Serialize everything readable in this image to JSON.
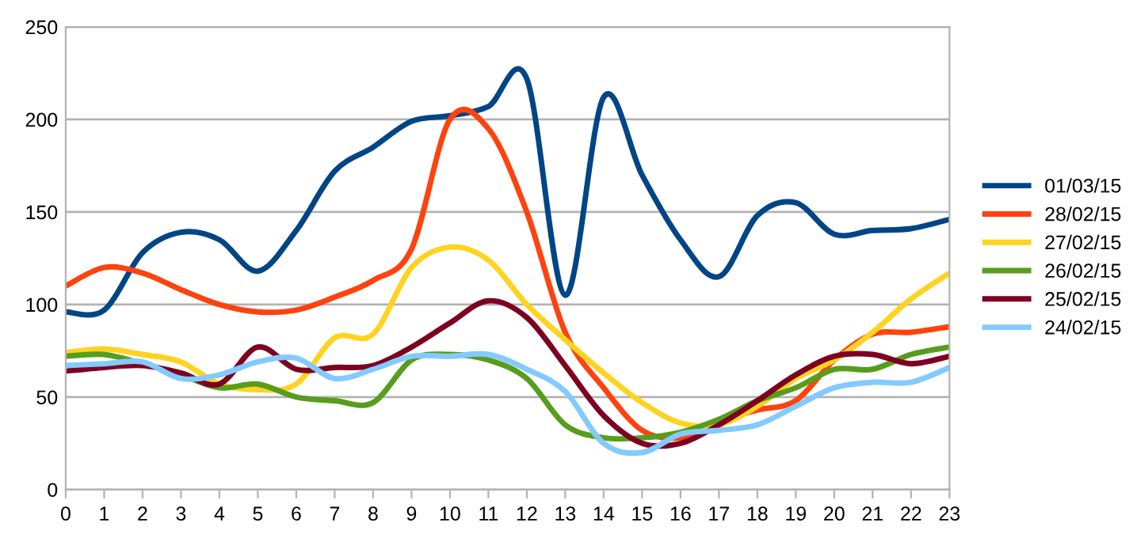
{
  "chart_data": {
    "type": "line",
    "x": [
      0,
      1,
      2,
      3,
      4,
      5,
      6,
      7,
      8,
      9,
      10,
      11,
      12,
      13,
      14,
      15,
      16,
      17,
      18,
      19,
      20,
      21,
      22,
      23
    ],
    "xlim": [
      0,
      23
    ],
    "xticks": [
      0,
      1,
      2,
      3,
      4,
      5,
      6,
      7,
      8,
      9,
      10,
      11,
      12,
      13,
      14,
      15,
      16,
      17,
      18,
      19,
      20,
      21,
      22,
      23
    ],
    "ylim": [
      0,
      250
    ],
    "yticks": [
      0,
      50,
      100,
      150,
      200,
      250
    ],
    "grid": "y",
    "legend": "right",
    "marker": "none",
    "line_style": "solid",
    "series": [
      {
        "name": "01/03/15",
        "color": "#004586",
        "values": [
          96,
          97,
          128,
          139,
          135,
          118,
          140,
          172,
          185,
          199,
          202,
          207,
          222,
          105,
          212,
          170,
          135,
          115,
          148,
          155,
          138,
          140,
          141,
          146
        ]
      },
      {
        "name": "28/02/15",
        "color": "#ff420e",
        "values": [
          110,
          120,
          117,
          108,
          100,
          96,
          97,
          104,
          113,
          130,
          200,
          195,
          150,
          85,
          55,
          32,
          28,
          37,
          43,
          48,
          70,
          84,
          85,
          88
        ]
      },
      {
        "name": "27/02/15",
        "color": "#ffd320",
        "values": [
          74,
          76,
          73,
          69,
          57,
          54,
          57,
          82,
          84,
          120,
          131,
          124,
          100,
          81,
          63,
          47,
          36,
          35,
          45,
          60,
          70,
          85,
          103,
          117
        ]
      },
      {
        "name": "26/02/15",
        "color": "#579d1c",
        "values": [
          72,
          73,
          68,
          62,
          55,
          57,
          50,
          48,
          47,
          70,
          73,
          70,
          60,
          35,
          28,
          28,
          31,
          38,
          48,
          55,
          65,
          65,
          73,
          77
        ]
      },
      {
        "name": "25/02/15",
        "color": "#7e0021",
        "values": [
          64,
          66,
          67,
          63,
          57,
          77,
          65,
          66,
          67,
          77,
          90,
          102,
          93,
          67,
          40,
          25,
          25,
          35,
          48,
          62,
          72,
          73,
          68,
          72
        ]
      },
      {
        "name": "24/02/15",
        "color": "#83caff",
        "values": [
          67,
          68,
          69,
          60,
          62,
          69,
          71,
          60,
          65,
          72,
          72,
          73,
          65,
          53,
          25,
          20,
          30,
          32,
          35,
          45,
          55,
          58,
          58,
          66
        ]
      }
    ]
  }
}
